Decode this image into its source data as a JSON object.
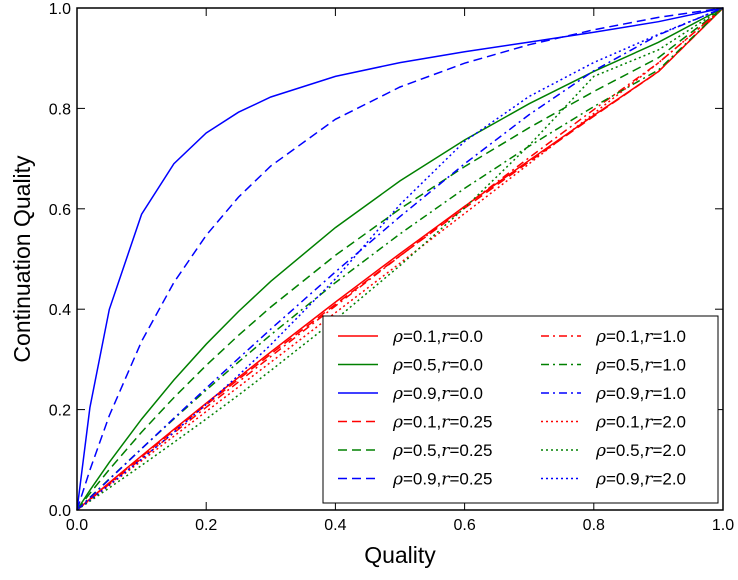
{
  "chart_data": {
    "type": "line",
    "xlabel": "Quality",
    "ylabel": "Continuation Quality",
    "xlim": [
      0.0,
      1.0
    ],
    "ylim": [
      0.0,
      1.0
    ],
    "x_ticks": [
      "0.0",
      "0.2",
      "0.4",
      "0.6",
      "0.8",
      "1.0"
    ],
    "y_ticks": [
      "0.0",
      "0.2",
      "0.4",
      "0.6",
      "0.8",
      "1.0"
    ],
    "grid": false,
    "legend_position": "bottom-right",
    "legend_columns": 2,
    "x": [
      0,
      0.02,
      0.05,
      0.1,
      0.15,
      0.2,
      0.25,
      0.3,
      0.4,
      0.5,
      0.6,
      0.7,
      0.8,
      0.9,
      1.0
    ],
    "series": [
      {
        "name": "ρ=0.1,r=0.0",
        "rho": "0.1",
        "r": "0.0",
        "color": "#ff0000",
        "style": "solid",
        "values": [
          0,
          0.0219,
          0.0544,
          0.1079,
          0.1607,
          0.2127,
          0.2641,
          0.3148,
          0.4142,
          0.5108,
          0.605,
          0.6967,
          0.7861,
          0.8733,
          1.0
        ]
      },
      {
        "name": "ρ=0.5,r=0.0",
        "rho": "0.5",
        "r": "0.0",
        "color": "#008000",
        "style": "solid",
        "values": [
          0,
          0.0392,
          0.0951,
          0.181,
          0.259,
          0.3302,
          0.3954,
          0.4556,
          0.5626,
          0.6555,
          0.737,
          0.8093,
          0.8737,
          0.9316,
          1.0
        ]
      },
      {
        "name": "ρ=0.9,r=0.0",
        "rho": "0.9",
        "r": "0.0",
        "color": "#0000ff",
        "style": "solid",
        "values": [
          0,
          0.204,
          0.3996,
          0.5893,
          0.6899,
          0.751,
          0.7924,
          0.8227,
          0.8637,
          0.8912,
          0.9129,
          0.9321,
          0.9515,
          0.9727,
          1.0
        ]
      },
      {
        "name": "ρ=0.1,r=0.25",
        "rho": "0.1",
        "r": "0.25",
        "color": "#ff0000",
        "style": "dashed",
        "values": [
          0,
          0.0215,
          0.0535,
          0.1062,
          0.1582,
          0.2096,
          0.2604,
          0.3107,
          0.4096,
          0.5064,
          0.6012,
          0.6938,
          0.7845,
          0.8731,
          1.0
        ]
      },
      {
        "name": "ρ=0.5,r=0.25",
        "rho": "0.5",
        "r": "0.25",
        "color": "#008000",
        "style": "dashed",
        "values": [
          0,
          0.033,
          0.0806,
          0.1551,
          0.224,
          0.2881,
          0.3481,
          0.4044,
          0.5074,
          0.5999,
          0.6841,
          0.7616,
          0.8336,
          0.901,
          1.0
        ]
      },
      {
        "name": "ρ=0.9,r=0.25",
        "rho": "0.9",
        "r": "0.25",
        "color": "#0000ff",
        "style": "dashed",
        "values": [
          0,
          0.0794,
          0.188,
          0.3361,
          0.4531,
          0.5472,
          0.6233,
          0.6853,
          0.7782,
          0.8427,
          0.8901,
          0.9268,
          0.9566,
          0.9812,
          1.0
        ]
      },
      {
        "name": "ρ=0.1,r=1.0",
        "rho": "0.1",
        "r": "1.0",
        "color": "#ff0000",
        "style": "dashdot",
        "values": [
          0,
          0.0206,
          0.0514,
          0.1026,
          0.1536,
          0.2045,
          0.2552,
          0.3058,
          0.4063,
          0.506,
          0.6046,
          0.702,
          0.7976,
          0.8906,
          1.0
        ]
      },
      {
        "name": "ρ=0.5,r=1.0",
        "rho": "0.5",
        "r": "1.0",
        "color": "#008000",
        "style": "dashdot",
        "values": [
          0,
          0.025,
          0.062,
          0.1224,
          0.1814,
          0.2389,
          0.2948,
          0.3491,
          0.4529,
          0.55,
          0.6406,
          0.725,
          0.8036,
          0.8765,
          1.0
        ]
      },
      {
        "name": "ρ=0.9,r=1.0",
        "rho": "0.9",
        "r": "1.0",
        "color": "#0000ff",
        "style": "dashdot",
        "values": [
          0,
          0.0243,
          0.061,
          0.1222,
          0.1829,
          0.2428,
          0.302,
          0.3603,
          0.4744,
          0.5845,
          0.6897,
          0.7877,
          0.875,
          0.9465,
          1.0
        ]
      },
      {
        "name": "ρ=0.1,r=2.0",
        "rho": "0.1",
        "r": "2.0",
        "color": "#ff0000",
        "style": "dotted",
        "values": [
          0,
          0.0196,
          0.049,
          0.098,
          0.1471,
          0.1962,
          0.2453,
          0.2945,
          0.393,
          0.4917,
          0.5906,
          0.6899,
          0.7898,
          0.8907,
          1.0
        ]
      },
      {
        "name": "ρ=0.5,r=2.0",
        "rho": "0.5",
        "r": "2.0",
        "color": "#008000",
        "style": "dotted",
        "values": [
          0,
          0.0176,
          0.0441,
          0.0889,
          0.1346,
          0.1812,
          0.2289,
          0.2778,
          0.3793,
          0.4868,
          0.6017,
          0.7264,
          0.8637,
          0.9165,
          1.0
        ]
      },
      {
        "name": "ρ=0.9,r=2.0",
        "rho": "0.9",
        "r": "2.0",
        "color": "#0000ff",
        "style": "dotted",
        "values": [
          0,
          0.0199,
          0.05,
          0.1014,
          0.1547,
          0.2103,
          0.2683,
          0.3292,
          0.4604,
          0.6084,
          0.7342,
          0.8239,
          0.8914,
          0.9474,
          1.0
        ]
      }
    ]
  }
}
